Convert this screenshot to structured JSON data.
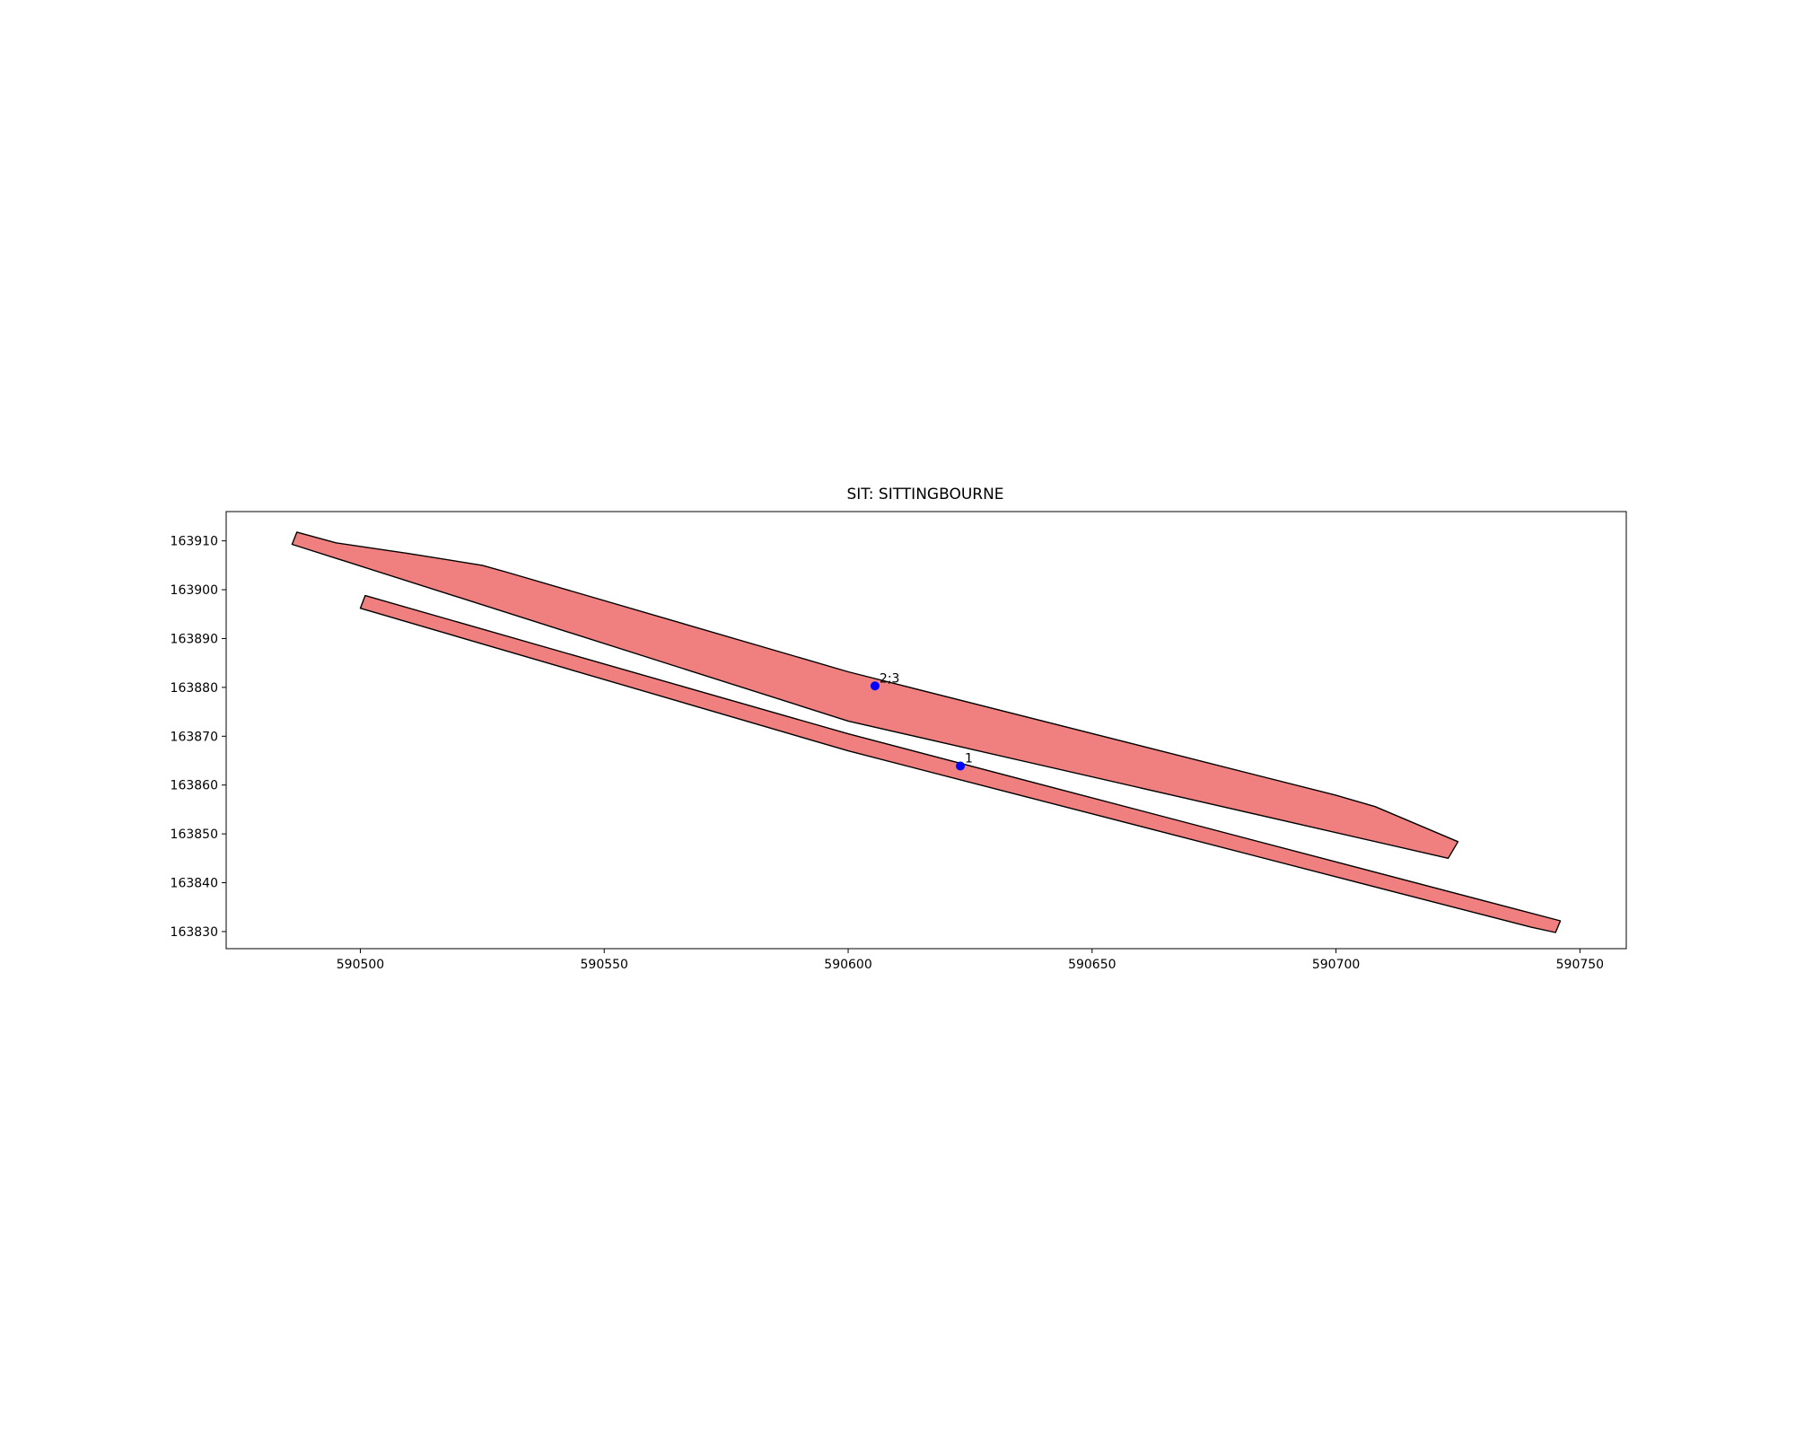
{
  "chart_data": {
    "type": "scatter",
    "title": "SIT: SITTINGBOURNE",
    "xlabel": "",
    "ylabel": "",
    "xlim": [
      590472.5,
      590759.5
    ],
    "ylim": [
      163826.5,
      163916
    ],
    "xticks": [
      590500,
      590550,
      590600,
      590650,
      590700,
      590750
    ],
    "yticks": [
      163830,
      163840,
      163850,
      163860,
      163870,
      163880,
      163890,
      163900,
      163910
    ],
    "grid": false,
    "colors": {
      "polygon_fill": "#f08080",
      "polygon_edge": "#000000",
      "point": "#0000ff"
    },
    "polygons": [
      {
        "points": [
          [
            590486.0,
            163909.3
          ],
          [
            590487.0,
            163911.8
          ],
          [
            590495.0,
            163909.6
          ],
          [
            590510.0,
            163907.4
          ],
          [
            590525.0,
            163905.0
          ],
          [
            590530.0,
            163903.6
          ],
          [
            590600.0,
            163883.2
          ],
          [
            590700.0,
            163857.9
          ],
          [
            590708.0,
            163855.6
          ],
          [
            590725.0,
            163848.4
          ],
          [
            590723.0,
            163845.0
          ],
          [
            590600.0,
            163873.1
          ]
        ]
      },
      {
        "points": [
          [
            590500.0,
            163896.2
          ],
          [
            590501.0,
            163898.8
          ],
          [
            590600.0,
            163870.5
          ],
          [
            590746.0,
            163832.2
          ],
          [
            590745.0,
            163829.8
          ],
          [
            590740.0,
            163830.9
          ],
          [
            590600.0,
            163867.0
          ]
        ]
      }
    ],
    "points": [
      {
        "label": "2;3",
        "x": 590605.5,
        "y": 163880.3
      },
      {
        "label": "1",
        "x": 590623.0,
        "y": 163863.9
      }
    ]
  }
}
